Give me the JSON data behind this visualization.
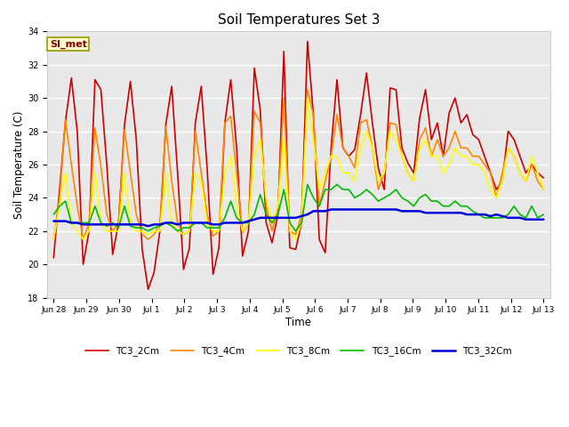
{
  "title": "Soil Temperatures Set 3",
  "xlabel": "Time",
  "ylabel": "Soil Temperature (C)",
  "ylim": [
    18,
    34
  ],
  "yticks": [
    18,
    20,
    22,
    24,
    26,
    28,
    30,
    32,
    34
  ],
  "plot_bg": "#e8e8e8",
  "fig_bg": "#ffffff",
  "annotation_text": "SI_met",
  "annotation_bg": "#ffffcc",
  "annotation_border": "#999900",
  "annotation_fg": "#880000",
  "grid_color": "#ffffff",
  "series_names": [
    "TC3_2Cm",
    "TC3_4Cm",
    "TC3_8Cm",
    "TC3_16Cm",
    "TC3_32Cm"
  ],
  "colors": {
    "TC3_2Cm": "#cc0000",
    "TC3_4Cm": "#ff8800",
    "TC3_8Cm": "#ffff00",
    "TC3_16Cm": "#00bb00",
    "TC3_32Cm": "#0000dd"
  },
  "linewidths": {
    "TC3_2Cm": 1.2,
    "TC3_4Cm": 1.2,
    "TC3_8Cm": 1.2,
    "TC3_16Cm": 1.2,
    "TC3_32Cm": 1.8
  },
  "tick_labels": [
    "Jun 28",
    "Jun 29",
    "Jun 30",
    "Jul 1",
    "Jul 2",
    "Jul 3",
    "Jul 4",
    "Jul 5",
    "Jul 6",
    "Jul 7",
    "Jul 8",
    "Jul 9",
    "Jul 10",
    "Jul 11",
    "Jul 12",
    "Jul 13"
  ],
  "TC3_2Cm": [
    20.4,
    24.5,
    28.6,
    31.2,
    28.0,
    20.0,
    22.0,
    31.1,
    30.5,
    26.0,
    20.6,
    22.5,
    28.4,
    31.0,
    27.5,
    20.9,
    18.5,
    19.5,
    22.0,
    28.4,
    30.7,
    25.5,
    19.7,
    21.0,
    28.5,
    30.7,
    25.8,
    19.4,
    21.0,
    28.5,
    31.1,
    27.0,
    20.5,
    22.0,
    31.8,
    29.3,
    22.5,
    21.3,
    23.0,
    32.8,
    21.0,
    20.9,
    22.5,
    33.4,
    29.0,
    21.5,
    20.7,
    27.0,
    31.1,
    27.0,
    26.5,
    26.9,
    29.0,
    31.5,
    28.5,
    25.8,
    24.5,
    30.6,
    30.5,
    27.0,
    26.1,
    25.5,
    28.8,
    30.5,
    27.5,
    28.5,
    26.5,
    29.1,
    30.0,
    28.5,
    29.0,
    27.8,
    27.5,
    26.5,
    25.5,
    24.5,
    25.0,
    28.0,
    27.5,
    26.5,
    25.5,
    26.0,
    25.5,
    25.2
  ],
  "TC3_4Cm": [
    21.5,
    24.0,
    28.7,
    26.0,
    23.5,
    21.5,
    22.5,
    28.2,
    25.9,
    23.0,
    22.0,
    22.5,
    28.1,
    25.5,
    23.0,
    21.8,
    21.5,
    21.8,
    22.5,
    28.3,
    25.0,
    22.5,
    21.8,
    22.0,
    28.0,
    25.5,
    23.0,
    21.7,
    22.0,
    28.5,
    28.9,
    25.5,
    21.9,
    22.5,
    29.2,
    28.5,
    23.5,
    22.0,
    23.5,
    30.0,
    22.0,
    21.8,
    23.0,
    30.5,
    29.0,
    23.5,
    25.0,
    26.5,
    29.0,
    27.0,
    26.5,
    25.8,
    28.5,
    28.7,
    27.0,
    24.5,
    25.5,
    28.5,
    28.4,
    26.5,
    25.5,
    25.0,
    27.5,
    28.2,
    26.5,
    27.5,
    26.5,
    27.0,
    28.0,
    27.0,
    27.0,
    26.5,
    26.5,
    26.0,
    25.5,
    24.0,
    25.5,
    27.0,
    26.5,
    25.5,
    25.0,
    26.0,
    25.0,
    24.5
  ],
  "TC3_8Cm": [
    21.5,
    23.5,
    25.5,
    22.5,
    22.0,
    21.5,
    22.0,
    25.5,
    22.5,
    22.0,
    22.0,
    22.0,
    25.5,
    22.5,
    22.0,
    22.0,
    21.8,
    22.0,
    22.0,
    25.5,
    22.5,
    22.0,
    21.8,
    22.0,
    25.5,
    25.0,
    22.5,
    22.0,
    22.0,
    25.5,
    26.5,
    23.5,
    22.0,
    22.5,
    26.5,
    27.5,
    24.0,
    22.5,
    23.5,
    27.5,
    22.0,
    21.5,
    22.5,
    30.0,
    27.5,
    24.5,
    25.5,
    26.5,
    26.5,
    25.5,
    25.5,
    25.0,
    27.0,
    28.0,
    27.0,
    25.0,
    25.5,
    28.0,
    27.5,
    26.5,
    25.5,
    25.0,
    27.0,
    27.5,
    26.5,
    26.5,
    25.5,
    26.0,
    27.0,
    26.5,
    26.5,
    26.0,
    26.0,
    25.5,
    24.5,
    24.0,
    25.0,
    27.0,
    26.5,
    25.5,
    25.0,
    26.5,
    25.5,
    24.5
  ],
  "TC3_16Cm": [
    23.0,
    23.5,
    23.8,
    22.5,
    22.5,
    22.5,
    22.5,
    23.5,
    22.5,
    22.3,
    22.5,
    22.2,
    23.5,
    22.3,
    22.2,
    22.2,
    22.0,
    22.2,
    22.3,
    22.5,
    22.3,
    22.0,
    22.2,
    22.2,
    22.5,
    22.5,
    22.2,
    22.2,
    22.2,
    22.8,
    23.8,
    22.8,
    22.5,
    22.5,
    23.0,
    24.2,
    23.0,
    22.5,
    23.0,
    24.5,
    22.5,
    22.0,
    22.5,
    24.8,
    24.0,
    23.5,
    24.5,
    24.5,
    24.8,
    24.5,
    24.5,
    24.0,
    24.2,
    24.5,
    24.2,
    23.8,
    24.0,
    24.2,
    24.5,
    24.0,
    23.8,
    23.5,
    24.0,
    24.2,
    23.8,
    23.8,
    23.5,
    23.5,
    23.8,
    23.5,
    23.5,
    23.2,
    23.0,
    22.8,
    22.8,
    22.8,
    22.8,
    23.0,
    23.5,
    23.0,
    22.8,
    23.5,
    22.8,
    23.0
  ],
  "TC3_32Cm": [
    22.6,
    22.6,
    22.6,
    22.5,
    22.5,
    22.4,
    22.4,
    22.4,
    22.4,
    22.4,
    22.4,
    22.4,
    22.4,
    22.4,
    22.4,
    22.4,
    22.3,
    22.4,
    22.4,
    22.5,
    22.5,
    22.4,
    22.5,
    22.5,
    22.5,
    22.5,
    22.5,
    22.4,
    22.4,
    22.5,
    22.5,
    22.5,
    22.5,
    22.6,
    22.7,
    22.8,
    22.8,
    22.8,
    22.8,
    22.8,
    22.8,
    22.8,
    22.9,
    23.0,
    23.2,
    23.2,
    23.2,
    23.3,
    23.3,
    23.3,
    23.3,
    23.3,
    23.3,
    23.3,
    23.3,
    23.3,
    23.3,
    23.3,
    23.3,
    23.2,
    23.2,
    23.2,
    23.2,
    23.1,
    23.1,
    23.1,
    23.1,
    23.1,
    23.1,
    23.1,
    23.0,
    23.0,
    23.0,
    23.0,
    22.9,
    23.0,
    22.9,
    22.8,
    22.8,
    22.8,
    22.7,
    22.7,
    22.7,
    22.7
  ]
}
